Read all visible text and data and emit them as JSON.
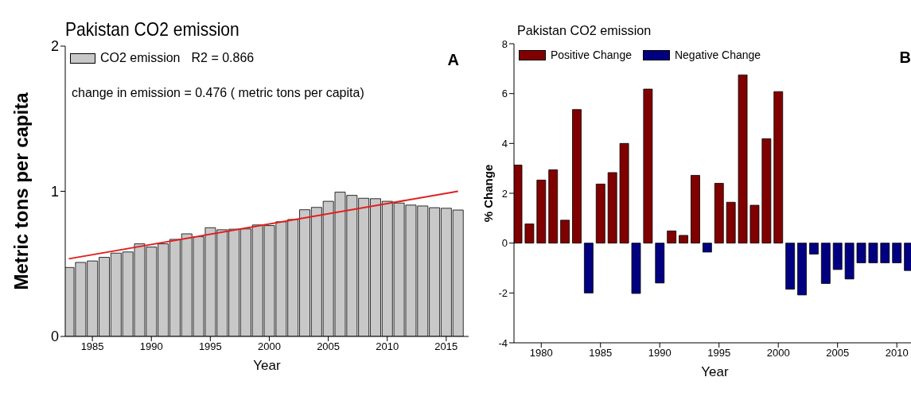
{
  "chart_data": [
    {
      "type": "bar",
      "title": "Pakistan CO2 emission",
      "xlabel": "Year",
      "ylabel": "Metric tons per capita",
      "annotations": [
        "R2 = 0.866",
        "change in emission = 0.476 ( metric tons per capita)",
        "A"
      ],
      "x": [
        1983,
        1984,
        1985,
        1986,
        1987,
        1988,
        1989,
        1990,
        1991,
        1992,
        1993,
        1994,
        1995,
        1996,
        1997,
        1998,
        1999,
        2000,
        2001,
        2002,
        2003,
        2004,
        2005,
        2006,
        2007,
        2008,
        2009,
        2010,
        2011,
        2012,
        2013,
        2014,
        2015,
        2016
      ],
      "series": [
        {
          "name": "CO2 emission",
          "color": "#c8c8c8",
          "values": [
            0.475,
            0.51,
            0.52,
            0.545,
            0.574,
            0.582,
            0.638,
            0.616,
            0.638,
            0.669,
            0.707,
            0.687,
            0.749,
            0.735,
            0.739,
            0.741,
            0.768,
            0.764,
            0.79,
            0.806,
            0.873,
            0.889,
            0.931,
            0.994,
            0.972,
            0.952,
            0.949,
            0.931,
            0.919,
            0.905,
            0.899,
            0.887,
            0.883,
            0.871
          ]
        },
        {
          "type": "line",
          "color": "#e02020",
          "x": [
            1983,
            2016
          ],
          "values": [
            0.535,
            1.0
          ]
        }
      ],
      "xlim": [
        1982.7,
        2016.9
      ],
      "xticks": [
        1985,
        1990,
        1995,
        2000,
        2005,
        2010,
        2015
      ],
      "ylim": [
        0,
        2
      ],
      "yticks": [
        0,
        1,
        2
      ],
      "legend": "top left",
      "grid": false
    },
    {
      "type": "bar",
      "title": "Pakistan CO2 emission",
      "xlabel": "Year",
      "ylabel": "% Change",
      "annotations": [
        "B"
      ],
      "x": [
        1978,
        1979,
        1980,
        1981,
        1982,
        1983,
        1984,
        1985,
        1986,
        1987,
        1988,
        1989,
        1990,
        1991,
        1992,
        1993,
        1994,
        1995,
        1996,
        1997,
        1998,
        1999,
        2000,
        2001,
        2002,
        2003,
        2004,
        2005,
        2006,
        2007,
        2008,
        2009,
        2010,
        2011
      ],
      "series": [
        {
          "name": "Positive Change",
          "color": "#800000",
          "values": [
            3.13,
            0.77,
            2.53,
            2.94,
            0.92,
            5.36,
            null,
            2.37,
            2.83,
            4.0,
            null,
            6.18,
            null,
            0.49,
            0.31,
            2.72,
            null,
            2.4,
            1.64,
            6.75,
            1.52,
            4.19,
            6.08,
            null,
            null,
            null,
            null,
            null,
            null,
            null,
            null,
            null,
            null,
            null
          ]
        },
        {
          "name": "Negative Change",
          "color": "#000080",
          "values": [
            null,
            null,
            null,
            null,
            null,
            null,
            -2.0,
            null,
            null,
            null,
            -2.02,
            null,
            -1.6,
            null,
            null,
            null,
            -0.36,
            null,
            null,
            null,
            null,
            null,
            null,
            -1.85,
            -2.08,
            -0.44,
            -1.62,
            -1.06,
            -1.44,
            -0.79,
            -0.79,
            -0.79,
            -0.79,
            -1.1
          ]
        }
      ],
      "xlim": [
        1977.7,
        2011.6
      ],
      "xticks": [
        1980,
        1985,
        1990,
        1995,
        2000,
        2005,
        2010
      ],
      "ylim": [
        -4,
        8
      ],
      "yticks": [
        -4,
        -2,
        0,
        2,
        4,
        6,
        8
      ],
      "legend": "top left",
      "grid": false
    }
  ]
}
